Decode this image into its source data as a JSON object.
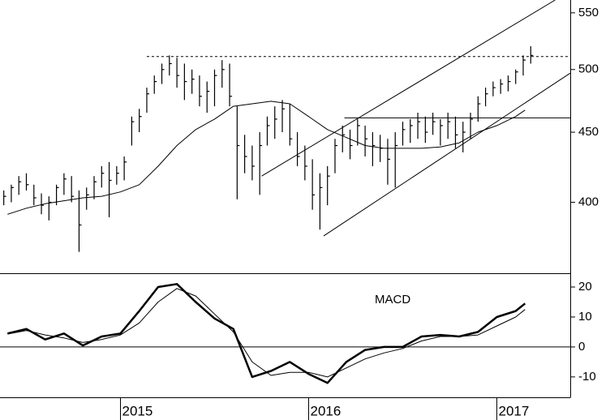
{
  "chart_data": [
    {
      "type": "ohlc",
      "xlim": [
        2014.36,
        2017.39
      ],
      "ylim": [
        355,
        562
      ],
      "log": true,
      "yticks": [
        400,
        450,
        500,
        550
      ],
      "bars": {
        "x": [
          2014.38,
          2014.42,
          2014.46,
          2014.5,
          2014.54,
          2014.58,
          2014.62,
          2014.66,
          2014.7,
          2014.74,
          2014.78,
          2014.82,
          2014.86,
          2014.9,
          2014.94,
          2014.98,
          2015.02,
          2015.06,
          2015.1,
          2015.14,
          2015.18,
          2015.22,
          2015.26,
          2015.3,
          2015.34,
          2015.38,
          2015.42,
          2015.46,
          2015.5,
          2015.54,
          2015.58,
          2015.62,
          2015.66,
          2015.7,
          2015.74,
          2015.78,
          2015.82,
          2015.86,
          2015.9,
          2015.94,
          2015.98,
          2016.02,
          2016.06,
          2016.1,
          2016.14,
          2016.18,
          2016.22,
          2016.26,
          2016.3,
          2016.34,
          2016.38,
          2016.42,
          2016.46,
          2016.5,
          2016.54,
          2016.58,
          2016.62,
          2016.66,
          2016.7,
          2016.74,
          2016.78,
          2016.82,
          2016.86,
          2016.9,
          2016.94,
          2016.98,
          2017.02,
          2017.06,
          2017.1,
          2017.14,
          2017.18
        ],
        "high": [
          408,
          412,
          418,
          420,
          412,
          406,
          404,
          412,
          420,
          418,
          408,
          410,
          418,
          425,
          428,
          425,
          432,
          462,
          468,
          485,
          495,
          505,
          512,
          510,
          505,
          500,
          495,
          490,
          500,
          508,
          505,
          470,
          448,
          440,
          450,
          462,
          470,
          475,
          472,
          450,
          440,
          430,
          420,
          425,
          445,
          455,
          452,
          460,
          455,
          450,
          448,
          445,
          450,
          458,
          460,
          465,
          462,
          465,
          460,
          465,
          462,
          458,
          465,
          478,
          485,
          490,
          492,
          495,
          500,
          512,
          520
        ],
        "low": [
          398,
          400,
          405,
          408,
          398,
          392,
          388,
          398,
          405,
          400,
          368,
          395,
          402,
          410,
          390,
          412,
          415,
          440,
          450,
          465,
          480,
          488,
          495,
          485,
          475,
          480,
          470,
          465,
          470,
          485,
          470,
          402,
          420,
          415,
          405,
          440,
          445,
          450,
          440,
          425,
          415,
          395,
          382,
          398,
          420,
          435,
          430,
          440,
          432,
          425,
          428,
          412,
          410,
          440,
          442,
          445,
          442,
          448,
          440,
          445,
          438,
          435,
          445,
          458,
          470,
          478,
          480,
          482,
          488,
          495,
          505
        ],
        "close": [
          404,
          410,
          414,
          412,
          403,
          398,
          400,
          410,
          416,
          404,
          385,
          405,
          414,
          420,
          415,
          420,
          428,
          458,
          462,
          480,
          490,
          500,
          505,
          495,
          490,
          492,
          478,
          482,
          495,
          500,
          478,
          440,
          432,
          425,
          440,
          455,
          460,
          468,
          445,
          432,
          425,
          405,
          410,
          418,
          440,
          448,
          440,
          455,
          445,
          440,
          438,
          430,
          440,
          452,
          455,
          458,
          450,
          458,
          455,
          458,
          448,
          450,
          460,
          472,
          480,
          485,
          488,
          490,
          498,
          508,
          512
        ]
      },
      "lines": [
        {
          "color": "#000000",
          "x": [
            2014.4,
            2014.5,
            2014.6,
            2014.7,
            2014.8,
            2014.9,
            2015.0,
            2015.1,
            2015.2,
            2015.3,
            2015.4,
            2015.5,
            2015.6,
            2015.7,
            2015.8,
            2015.9,
            2016.0,
            2016.1,
            2016.2,
            2016.3,
            2016.4,
            2016.5,
            2016.6,
            2016.7,
            2016.8,
            2016.9,
            2017.0,
            2017.1,
            2017.15
          ],
          "values": [
            392,
            396,
            399,
            401,
            403,
            404,
            407,
            412,
            425,
            440,
            452,
            460,
            470,
            472,
            474,
            472,
            462,
            452,
            446,
            440,
            438,
            438,
            438,
            439,
            442,
            450,
            455,
            462,
            467
          ]
        }
      ],
      "trendlines": [
        {
          "x": [
            2016.08,
            2017.39
          ],
          "values": [
            378,
            497
          ]
        },
        {
          "x": [
            2015.75,
            2017.31
          ],
          "values": [
            418,
            562
          ]
        }
      ],
      "levels": [
        {
          "value": 461,
          "x": [
            2016.19,
            2017.39
          ],
          "dashed": false
        },
        {
          "value": 511,
          "x": [
            2015.14,
            2017.39
          ],
          "dashed": true
        }
      ]
    },
    {
      "type": "line",
      "annotation": "MACD",
      "xlim": [
        2014.36,
        2017.39
      ],
      "xticks": [
        2015,
        2016,
        2017
      ],
      "ylim": [
        -16.8,
        24.6
      ],
      "yticks": [
        -10,
        0,
        10,
        20
      ],
      "zero_line": true,
      "x": [
        2014.4,
        2014.5,
        2014.6,
        2014.7,
        2014.8,
        2014.9,
        2015.0,
        2015.1,
        2015.2,
        2015.3,
        2015.4,
        2015.5,
        2015.6,
        2015.7,
        2015.8,
        2015.9,
        2016.0,
        2016.1,
        2016.2,
        2016.3,
        2016.4,
        2016.5,
        2016.6,
        2016.7,
        2016.8,
        2016.9,
        2017.0,
        2017.1,
        2017.15
      ],
      "series": [
        {
          "color": "#000000",
          "values": [
            4.5,
            6,
            2.5,
            4.5,
            0.5,
            3.5,
            4.5,
            12,
            20,
            21,
            15,
            9.5,
            6,
            -10,
            -8,
            -5,
            -9,
            -12,
            -5,
            -1,
            0,
            0,
            3.5,
            4,
            3.5,
            5,
            10,
            12,
            14.5
          ]
        },
        {
          "color": "#000000",
          "values": [
            4.3,
            5.5,
            4,
            3,
            1.5,
            2.5,
            4,
            8,
            15,
            19.5,
            17,
            11,
            5,
            -5,
            -9.5,
            -8.5,
            -8.5,
            -10,
            -7,
            -4,
            -2,
            -0.5,
            2,
            3.5,
            3.5,
            4,
            7,
            10,
            12.5
          ]
        }
      ]
    }
  ]
}
